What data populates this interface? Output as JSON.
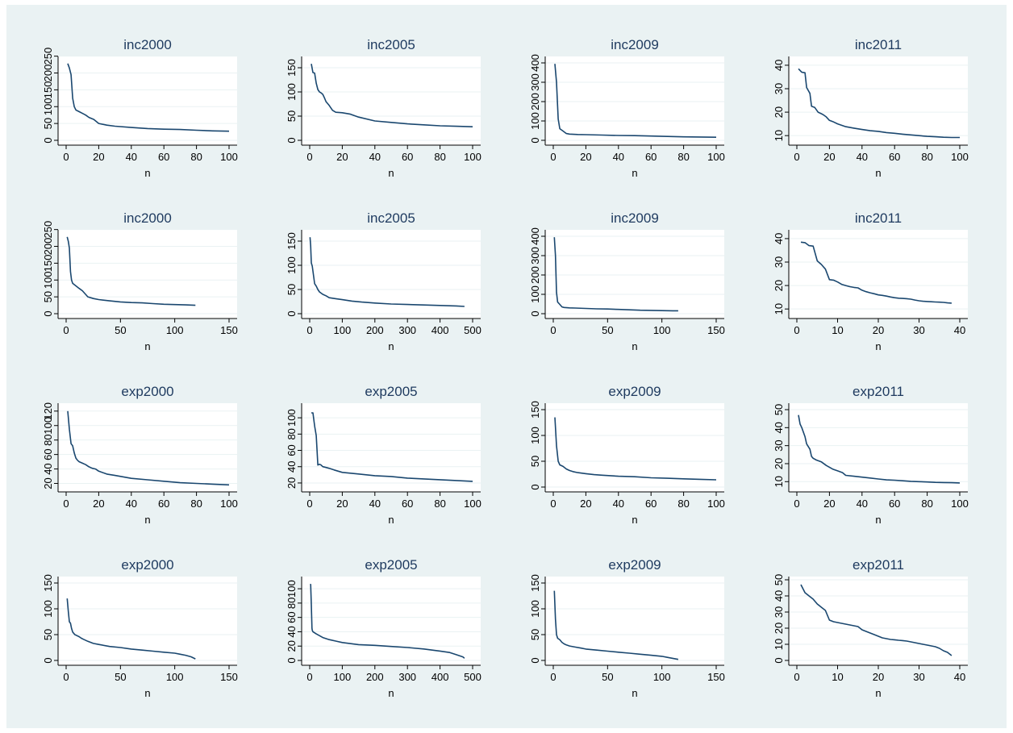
{
  "colors": {
    "background": "#eaf2f3",
    "plot_area": "#ffffff",
    "line": "#1a476f",
    "grid": "#eaf2f3",
    "title": "#1e3a5f"
  },
  "chart_data": [
    {
      "type": "line",
      "title": "inc2000",
      "xlabel": "n",
      "ylabel": "",
      "xlim": [
        0,
        100
      ],
      "ylim": [
        0,
        230
      ],
      "xticks": [
        "0",
        "20",
        "40",
        "60",
        "80",
        "100"
      ],
      "yticks": [
        "0",
        "50",
        "100",
        "150",
        "200",
        "250"
      ],
      "x": [
        1,
        2,
        3,
        4,
        5,
        6,
        8,
        10,
        12,
        14,
        17,
        20,
        25,
        30,
        40,
        50,
        60,
        70,
        80,
        90,
        100
      ],
      "y": [
        228,
        215,
        195,
        125,
        100,
        90,
        85,
        80,
        75,
        68,
        62,
        50,
        45,
        42,
        38,
        35,
        33,
        32,
        30,
        28,
        27
      ]
    },
    {
      "type": "line",
      "title": "inc2005",
      "xlabel": "n",
      "ylabel": "",
      "xlim": [
        0,
        100
      ],
      "ylim": [
        0,
        160
      ],
      "xticks": [
        "0",
        "20",
        "40",
        "60",
        "80",
        "100"
      ],
      "yticks": [
        "0",
        "50",
        "100",
        "150"
      ],
      "x": [
        1,
        2,
        3,
        4,
        5,
        6,
        7,
        8,
        9,
        10,
        12,
        14,
        16,
        20,
        25,
        30,
        40,
        50,
        60,
        70,
        80,
        90,
        100
      ],
      "y": [
        158,
        140,
        139,
        118,
        105,
        100,
        98,
        95,
        88,
        80,
        72,
        62,
        58,
        57,
        54,
        48,
        40,
        37,
        34,
        32,
        30,
        29,
        28
      ]
    },
    {
      "type": "line",
      "title": "inc2009",
      "xlabel": "n",
      "ylabel": "",
      "xlim": [
        0,
        100
      ],
      "ylim": [
        0,
        400
      ],
      "xticks": [
        "0",
        "20",
        "40",
        "60",
        "80",
        "100"
      ],
      "yticks": [
        "0",
        "100",
        "200",
        "300",
        "400"
      ],
      "x": [
        1,
        2,
        3,
        4,
        6,
        8,
        10,
        15,
        20,
        30,
        40,
        50,
        60,
        70,
        80,
        90,
        100
      ],
      "y": [
        395,
        300,
        110,
        60,
        48,
        35,
        32,
        30,
        29,
        27,
        25,
        24,
        22,
        20,
        18,
        17,
        16
      ]
    },
    {
      "type": "line",
      "title": "inc2011",
      "xlabel": "n",
      "ylabel": "",
      "xlim": [
        0,
        100
      ],
      "ylim": [
        8,
        41
      ],
      "xticks": [
        "0",
        "20",
        "40",
        "60",
        "80",
        "100"
      ],
      "yticks": [
        "10",
        "20",
        "30",
        "40"
      ],
      "x": [
        1,
        3,
        5,
        6,
        8,
        9,
        11,
        13,
        16,
        18,
        20,
        22,
        25,
        30,
        35,
        40,
        45,
        50,
        55,
        60,
        65,
        70,
        75,
        80,
        85,
        90,
        95,
        100
      ],
      "y": [
        38.5,
        37,
        36.8,
        30.5,
        28,
        22.5,
        22,
        20,
        19,
        18,
        16.5,
        16,
        15,
        13.8,
        13.2,
        12.6,
        12.1,
        11.8,
        11.3,
        11,
        10.6,
        10.3,
        10,
        9.7,
        9.5,
        9.3,
        9.2,
        9.2
      ]
    },
    {
      "type": "line",
      "title": "inc2000",
      "xlabel": "n",
      "ylabel": "",
      "xlim": [
        0,
        150
      ],
      "ylim": [
        0,
        230
      ],
      "xticks": [
        "0",
        "50",
        "100",
        "150"
      ],
      "yticks": [
        "0",
        "50",
        "100",
        "150",
        "200",
        "250"
      ],
      "x": [
        1,
        2,
        3,
        4,
        5,
        6,
        8,
        10,
        12,
        15,
        20,
        25,
        30,
        40,
        50,
        60,
        70,
        80,
        90,
        100,
        110,
        119
      ],
      "y": [
        228,
        215,
        195,
        125,
        100,
        90,
        85,
        80,
        75,
        68,
        50,
        45,
        42,
        38,
        35,
        33,
        32,
        30,
        28,
        27,
        26,
        25
      ]
    },
    {
      "type": "line",
      "title": "inc2005",
      "xlabel": "n",
      "ylabel": "",
      "xlim": [
        0,
        500
      ],
      "ylim": [
        0,
        160
      ],
      "xticks": [
        "0",
        "100",
        "200",
        "300",
        "400",
        "500"
      ],
      "yticks": [
        "0",
        "50",
        "100",
        "150"
      ],
      "x": [
        1,
        3,
        5,
        8,
        10,
        13,
        15,
        20,
        25,
        30,
        40,
        50,
        60,
        80,
        100,
        130,
        160,
        200,
        250,
        300,
        350,
        400,
        450,
        475
      ],
      "y": [
        158,
        140,
        105,
        98,
        88,
        72,
        62,
        57,
        50,
        45,
        40,
        37,
        33,
        31,
        29,
        26,
        24,
        22,
        20,
        19,
        18,
        17,
        16,
        15
      ]
    },
    {
      "type": "line",
      "title": "inc2009",
      "xlabel": "n",
      "ylabel": "",
      "xlim": [
        0,
        150
      ],
      "ylim": [
        0,
        400
      ],
      "xticks": [
        "0",
        "50",
        "100",
        "150"
      ],
      "yticks": [
        "0",
        "100",
        "200",
        "300",
        "400"
      ],
      "x": [
        1,
        2,
        3,
        4,
        6,
        8,
        10,
        15,
        20,
        30,
        40,
        50,
        60,
        70,
        80,
        90,
        100,
        110,
        115
      ],
      "y": [
        395,
        300,
        110,
        60,
        48,
        35,
        32,
        30,
        29,
        27,
        25,
        24,
        22,
        20,
        18,
        17,
        16,
        15,
        15
      ]
    },
    {
      "type": "line",
      "title": "inc2011",
      "xlabel": "n",
      "ylabel": "",
      "xlim": [
        0,
        40
      ],
      "ylim": [
        8,
        41
      ],
      "xticks": [
        "0",
        "10",
        "20",
        "30",
        "40"
      ],
      "yticks": [
        "10",
        "20",
        "30",
        "40"
      ],
      "x": [
        1,
        2,
        3,
        4,
        5,
        6,
        7,
        8,
        9,
        10,
        11,
        12,
        13,
        14,
        15,
        16,
        17,
        18,
        19,
        20,
        21,
        22,
        23,
        24,
        25,
        26,
        27,
        28,
        29,
        30,
        31,
        32,
        33,
        34,
        35,
        36,
        37,
        38
      ],
      "y": [
        38.5,
        38.3,
        37,
        36.8,
        30.5,
        29,
        27,
        22.5,
        22.3,
        21.5,
        20.5,
        20,
        19.5,
        19.2,
        19,
        18,
        17.4,
        16.9,
        16.5,
        16,
        15.8,
        15.5,
        15.1,
        14.8,
        14.6,
        14.5,
        14.4,
        14.2,
        13.8,
        13.5,
        13.3,
        13.2,
        13.1,
        13,
        12.9,
        12.8,
        12.6,
        12.5
      ]
    },
    {
      "type": "line",
      "title": "exp2000",
      "xlabel": "n",
      "ylabel": "",
      "xlim": [
        0,
        100
      ],
      "ylim": [
        15,
        122
      ],
      "xticks": [
        "0",
        "20",
        "40",
        "60",
        "80",
        "100"
      ],
      "yticks": [
        "20",
        "40",
        "60",
        "80",
        "100",
        "120"
      ],
      "x": [
        1,
        2,
        3,
        4,
        5,
        6,
        7,
        8,
        10,
        12,
        14,
        16,
        18,
        20,
        25,
        30,
        40,
        50,
        60,
        70,
        80,
        90,
        100
      ],
      "y": [
        120,
        95,
        75,
        72,
        62,
        55,
        52,
        50,
        48,
        46,
        43,
        41,
        40,
        37,
        33,
        31,
        27,
        25,
        23,
        21,
        20,
        19,
        18
      ]
    },
    {
      "type": "line",
      "title": "exp2005",
      "xlabel": "n",
      "ylabel": "",
      "xlim": [
        0,
        100
      ],
      "ylim": [
        15,
        110
      ],
      "xticks": [
        "0",
        "20",
        "40",
        "60",
        "80",
        "100"
      ],
      "yticks": [
        "20",
        "40",
        "60",
        "80",
        "100"
      ],
      "x": [
        1,
        2,
        3,
        4,
        5,
        6,
        7,
        8,
        10,
        12,
        15,
        20,
        25,
        30,
        40,
        50,
        60,
        70,
        80,
        90,
        100
      ],
      "y": [
        106,
        106,
        90,
        78,
        42,
        43,
        42,
        40,
        39,
        38,
        36,
        33,
        32,
        31,
        29,
        28,
        26,
        25,
        24,
        23,
        22
      ]
    },
    {
      "type": "line",
      "title": "exp2009",
      "xlabel": "n",
      "ylabel": "",
      "xlim": [
        0,
        100
      ],
      "ylim": [
        0,
        150
      ],
      "xticks": [
        "0",
        "20",
        "40",
        "60",
        "80",
        "100"
      ],
      "yticks": [
        "0",
        "50",
        "100",
        "150"
      ],
      "x": [
        1,
        2,
        3,
        4,
        6,
        8,
        10,
        12,
        15,
        20,
        25,
        30,
        40,
        50,
        60,
        70,
        80,
        90,
        100
      ],
      "y": [
        135,
        80,
        50,
        43,
        40,
        35,
        32,
        30,
        28,
        26,
        24,
        23,
        21,
        20,
        18,
        17,
        16,
        15,
        14
      ]
    },
    {
      "type": "line",
      "title": "exp2011",
      "xlabel": "n",
      "ylabel": "",
      "xlim": [
        0,
        100
      ],
      "ylim": [
        7,
        50
      ],
      "xticks": [
        "0",
        "20",
        "40",
        "60",
        "80",
        "100"
      ],
      "yticks": [
        "10",
        "20",
        "30",
        "40",
        "50"
      ],
      "x": [
        1,
        2,
        3,
        5,
        6,
        8,
        9,
        10,
        12,
        15,
        18,
        20,
        22,
        25,
        28,
        30,
        35,
        40,
        45,
        50,
        55,
        60,
        65,
        70,
        75,
        80,
        85,
        90,
        95,
        100
      ],
      "y": [
        47,
        42,
        40,
        35,
        31,
        28,
        24,
        23,
        22,
        21,
        19,
        18,
        17,
        16,
        15,
        13.5,
        13,
        12.5,
        12,
        11.5,
        11,
        10.8,
        10.5,
        10.2,
        10,
        9.8,
        9.6,
        9.5,
        9.4,
        9.3
      ]
    },
    {
      "type": "line",
      "title": "exp2000",
      "xlabel": "n",
      "ylabel": "",
      "xlim": [
        0,
        150
      ],
      "ylim": [
        0,
        150
      ],
      "xticks": [
        "0",
        "50",
        "100",
        "150"
      ],
      "yticks": [
        "0",
        "50",
        "100",
        "150"
      ],
      "x": [
        1,
        2,
        3,
        4,
        5,
        6,
        8,
        10,
        12,
        14,
        16,
        20,
        25,
        30,
        40,
        50,
        60,
        70,
        80,
        90,
        100,
        105,
        110,
        115,
        119
      ],
      "y": [
        120,
        95,
        75,
        72,
        62,
        55,
        50,
        48,
        46,
        43,
        41,
        37,
        33,
        31,
        27,
        25,
        22,
        20,
        18,
        16,
        14,
        12,
        10,
        7,
        3
      ]
    },
    {
      "type": "line",
      "title": "exp2005",
      "xlabel": "n",
      "ylabel": "",
      "xlim": [
        0,
        500
      ],
      "ylim": [
        0,
        108
      ],
      "xticks": [
        "0",
        "100",
        "200",
        "300",
        "400",
        "500"
      ],
      "yticks": [
        "0",
        "20",
        "40",
        "60",
        "80",
        "100"
      ],
      "x": [
        1,
        3,
        5,
        7,
        8,
        10,
        20,
        40,
        60,
        80,
        100,
        150,
        200,
        250,
        300,
        350,
        400,
        430,
        450,
        470,
        475
      ],
      "y": [
        106,
        106,
        78,
        45,
        42,
        40,
        37,
        32,
        29,
        27,
        25,
        22,
        21,
        19.5,
        18,
        16,
        13,
        11,
        8,
        5,
        3
      ]
    },
    {
      "type": "line",
      "title": "exp2009",
      "xlabel": "n",
      "ylabel": "",
      "xlim": [
        0,
        150
      ],
      "ylim": [
        0,
        150
      ],
      "xticks": [
        "0",
        "50",
        "100",
        "150"
      ],
      "yticks": [
        "0",
        "50",
        "100",
        "150"
      ],
      "x": [
        1,
        2,
        3,
        4,
        6,
        8,
        10,
        12,
        15,
        20,
        25,
        30,
        40,
        50,
        60,
        70,
        80,
        90,
        100,
        105,
        110,
        115
      ],
      "y": [
        135,
        80,
        50,
        43,
        40,
        35,
        32,
        30,
        28,
        26,
        24,
        22,
        20,
        18,
        16,
        14,
        12,
        10,
        8,
        6,
        4,
        2
      ]
    },
    {
      "type": "line",
      "title": "exp2011",
      "xlabel": "n",
      "ylabel": "",
      "xlim": [
        0,
        40
      ],
      "ylim": [
        0,
        48
      ],
      "xticks": [
        "0",
        "10",
        "20",
        "30",
        "40"
      ],
      "yticks": [
        "0",
        "10",
        "20",
        "30",
        "40",
        "50"
      ],
      "x": [
        1,
        2,
        3,
        4,
        5,
        6,
        7,
        8,
        9,
        10,
        11,
        12,
        13,
        14,
        15,
        16,
        17,
        18,
        19,
        20,
        21,
        22,
        23,
        24,
        25,
        26,
        27,
        28,
        29,
        30,
        31,
        32,
        33,
        34,
        35,
        36,
        37,
        38
      ],
      "y": [
        47,
        42,
        40,
        38,
        35,
        33,
        31,
        25,
        24,
        23.5,
        23,
        22.5,
        22,
        21.5,
        21,
        19,
        18,
        17,
        16,
        15,
        14,
        13.5,
        13,
        12.8,
        12.5,
        12.3,
        12,
        11.5,
        11,
        10.5,
        10,
        9.5,
        9,
        8.5,
        7.5,
        6,
        5,
        3
      ]
    }
  ]
}
